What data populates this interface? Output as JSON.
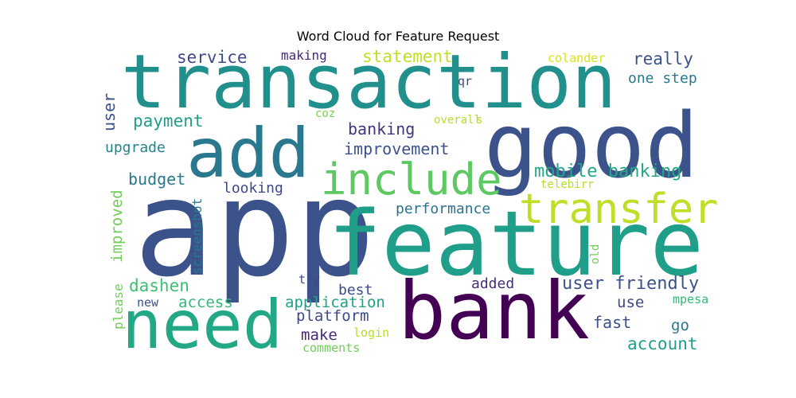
{
  "chart_data": {
    "type": "word_cloud",
    "title": "Word Cloud for Feature Request",
    "words": [
      {
        "text": "transaction",
        "color": "#21908d"
      },
      {
        "text": "good",
        "color": "#3b528b"
      },
      {
        "text": "add",
        "color": "#2a788e"
      },
      {
        "text": "include",
        "color": "#5ec962"
      },
      {
        "text": "transfer",
        "color": "#bddf26"
      },
      {
        "text": "app",
        "color": "#3b528b"
      },
      {
        "text": "feature",
        "color": "#1f9e89"
      },
      {
        "text": "need",
        "color": "#22a884"
      },
      {
        "text": "bank",
        "color": "#440154"
      },
      {
        "text": "service",
        "color": "#3e4989"
      },
      {
        "text": "making",
        "color": "#482878"
      },
      {
        "text": "statement",
        "color": "#bddf26"
      },
      {
        "text": "colander",
        "color": "#d8e219"
      },
      {
        "text": "really",
        "color": "#3b528b"
      },
      {
        "text": "one step",
        "color": "#2a788e"
      },
      {
        "text": "qr",
        "color": "#3e4989"
      },
      {
        "text": "user",
        "color": "#3b528b"
      },
      {
        "text": "payment",
        "color": "#1f9e89"
      },
      {
        "text": "coz",
        "color": "#7ad151"
      },
      {
        "text": "overall",
        "color": "#b5de2b"
      },
      {
        "text": "s",
        "color": "#b5de2b"
      },
      {
        "text": "banking",
        "color": "#46337e"
      },
      {
        "text": "upgrade",
        "color": "#26828e"
      },
      {
        "text": "improvement",
        "color": "#3b528b"
      },
      {
        "text": "mobile banking",
        "color": "#22a884"
      },
      {
        "text": "budget",
        "color": "#2a788e"
      },
      {
        "text": "looking",
        "color": "#3e4989"
      },
      {
        "text": "telebirr",
        "color": "#b5de2b"
      },
      {
        "text": "improved",
        "color": "#6ece58"
      },
      {
        "text": "screenshot",
        "color": "#2a788e"
      },
      {
        "text": "performance",
        "color": "#2c728e"
      },
      {
        "text": "old",
        "color": "#6ece58"
      },
      {
        "text": "dashen",
        "color": "#3fbc73"
      },
      {
        "text": "try",
        "color": "#3e4989"
      },
      {
        "text": "added",
        "color": "#472d7b"
      },
      {
        "text": "user friendly",
        "color": "#3b528b"
      },
      {
        "text": "best",
        "color": "#3e4989"
      },
      {
        "text": "please",
        "color": "#6ece58"
      },
      {
        "text": "new",
        "color": "#3b528b"
      },
      {
        "text": "access",
        "color": "#35b779"
      },
      {
        "text": "application",
        "color": "#1fa187"
      },
      {
        "text": "use",
        "color": "#3e4989"
      },
      {
        "text": "mpesa",
        "color": "#35b779"
      },
      {
        "text": "platform",
        "color": "#3e4989"
      },
      {
        "text": "fast",
        "color": "#3b528b"
      },
      {
        "text": "make",
        "color": "#482878"
      },
      {
        "text": "go",
        "color": "#2a788e"
      },
      {
        "text": "login",
        "color": "#b5de2b"
      },
      {
        "text": "account",
        "color": "#1f9e89"
      },
      {
        "text": "comments",
        "color": "#6ece58"
      }
    ]
  }
}
